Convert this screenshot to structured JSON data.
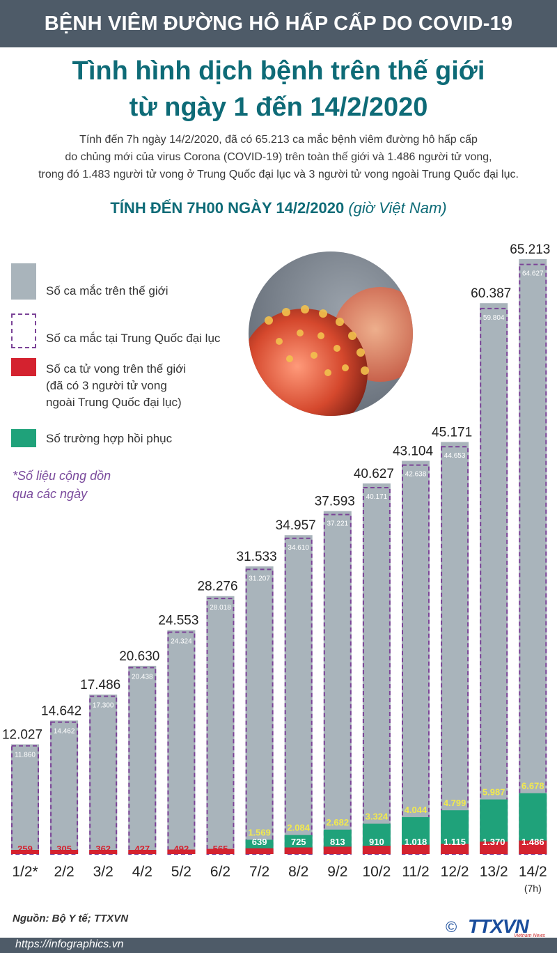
{
  "header": {
    "band_text": "BỆNH VIÊM ĐƯỜNG HÔ HẤP CẤP DO COVID-19",
    "title_line1": "Tình hình dịch bệnh trên thế giới",
    "title_line2": "từ ngày 1 đến 14/2/2020"
  },
  "intro": {
    "line1": "Tính đến 7h ngày 14/2/2020, đã có 65.213 ca mắc bệnh viêm đường hô hấp cấp",
    "line2": "do chủng mới của virus Corona (COVID-19) trên toàn thế giới và 1.486 người tử vong,",
    "line3": "trong đó 1.483 người tử vong ở Trung Quốc đại lục và 3 người tử vong ngoài Trung Quốc đại lục."
  },
  "subtitle": {
    "bold": "TÍNH ĐẾN 7H00 NGÀY 14/2/2020",
    "italic": "(giờ Việt Nam)"
  },
  "legend": {
    "world_cases": "Số ca mắc trên thế giới",
    "china_cases": "Số ca mắc tại Trung Quốc đại lục",
    "deaths_line1": "Số ca tử vong trên thế giới",
    "deaths_line2": "(đã có 3 người tử vong",
    "deaths_line3": "ngoài Trung Quốc đại lục)",
    "recovered": "Số trường hợp hồi phục"
  },
  "note": {
    "line1": "*Số liệu cộng dồn",
    "line2": "qua các ngày"
  },
  "colors": {
    "header_band": "#4e5b68",
    "title": "#0e6b77",
    "world_bar": "#a9b4bb",
    "china_outline": "#7b4397",
    "deaths": "#d4222f",
    "recovered": "#1fa27a",
    "recovered_label": "#f2e94e",
    "china_label": "#ffffff"
  },
  "chart_data": {
    "type": "bar",
    "categories": [
      "1/2*",
      "2/2",
      "3/2",
      "4/2",
      "5/2",
      "6/2",
      "7/2",
      "8/2",
      "9/2",
      "10/2",
      "11/2",
      "12/2",
      "13/2",
      "14/2"
    ],
    "category_note": {
      "14/2": "(7h)"
    },
    "series": [
      {
        "name": "Số ca mắc trên thế giới",
        "values": [
          12027,
          14642,
          17486,
          20630,
          24553,
          28276,
          31533,
          34957,
          37593,
          40627,
          43104,
          45171,
          60387,
          65213
        ],
        "labels": [
          "12.027",
          "14.642",
          "17.486",
          "20.630",
          "24.553",
          "28.276",
          "31.533",
          "34.957",
          "37.593",
          "40.627",
          "43.104",
          "45.171",
          "60.387",
          "65.213"
        ]
      },
      {
        "name": "Số ca mắc tại Trung Quốc đại lục",
        "values": [
          11860,
          14462,
          17300,
          20438,
          24324,
          28018,
          31207,
          34610,
          37221,
          40171,
          42638,
          44653,
          59804,
          64627
        ],
        "labels": [
          "11.860",
          "14.462",
          "17.300",
          "20.438",
          "24.324",
          "28.018",
          "31.207",
          "34.610",
          "37.221",
          "40.171",
          "42.638",
          "44.653",
          "59.804",
          "64.627"
        ]
      },
      {
        "name": "Số trường hợp hồi phục",
        "values": [
          null,
          null,
          null,
          null,
          null,
          null,
          1569,
          2084,
          2682,
          3324,
          4044,
          4799,
          5987,
          6678
        ],
        "labels": [
          "",
          "",
          "",
          "",
          "",
          "",
          "1.569",
          "2.084",
          "2.682",
          "3.324",
          "4.044",
          "4.799",
          "5.987",
          "6.678"
        ]
      },
      {
        "name": "Số ca tử vong trên thế giới",
        "values": [
          259,
          305,
          362,
          427,
          492,
          565,
          639,
          725,
          813,
          910,
          1018,
          1115,
          1370,
          1486
        ],
        "labels": [
          "259",
          "305",
          "362",
          "427",
          "492",
          "565",
          "639",
          "725",
          "813",
          "910",
          "1.018",
          "1.115",
          "1.370",
          "1.486"
        ]
      }
    ],
    "ylim": [
      0,
      65213
    ]
  },
  "footer": {
    "source": "Nguồn: Bộ Y tế; TTXVN",
    "url": "https://infographics.vn",
    "logo": "TTXVN",
    "logo_sub": "Vietnam News Agency",
    "copyright": "©"
  }
}
